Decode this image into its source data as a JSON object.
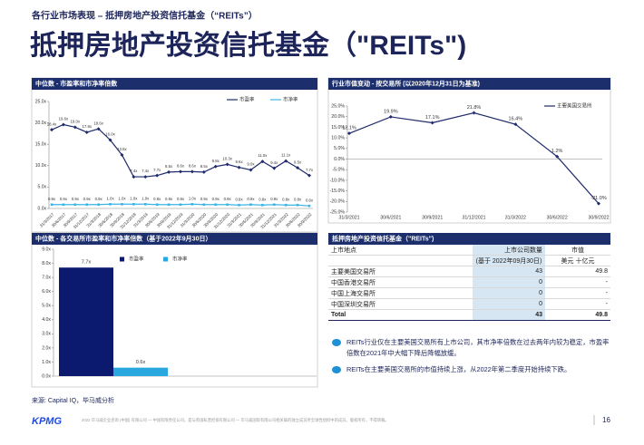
{
  "header": {
    "breadcrumb": "各行业市场表现 – 抵押房地产投资信托基金（“REITs”）",
    "title": "抵押房地产投资信托基金（\"REITs\")"
  },
  "chart_data": [
    {
      "type": "line",
      "title": "中位数 - 市盈率和市净率倍数",
      "categories": [
        "31/3/2017",
        "30/6/2017",
        "30/9/2017",
        "31/12/2017",
        "31/3/2018",
        "30/6/2018",
        "30/9/2018",
        "31/12/2018",
        "31/3/2019",
        "30/6/2019",
        "30/9/2019",
        "31/12/2019",
        "31/3/2020",
        "30/6/2020",
        "30/9/2020",
        "31/12/2020",
        "31/3/2021",
        "30/6/2021",
        "30/9/2021",
        "31/12/2021",
        "31/3/2022",
        "30/6/2022",
        "30/9/2022"
      ],
      "series": [
        {
          "name": "市盈率",
          "color": "#1f2a6b",
          "values": [
            18.4,
            19.6,
            19.0,
            17.8,
            18.6,
            16.0,
            12.5,
            7.4,
            7.4,
            7.7,
            8.5,
            8.6,
            8.6,
            8.5,
            9.8,
            10.3,
            9.6,
            9.0,
            11.0,
            9.4,
            11.1,
            9.5,
            7.7
          ],
          "value_labels": [
            "18.4x",
            "19.6x",
            "19.0x",
            "17.8x",
            "18.6x",
            "16.0x",
            "12.5x",
            "7.4x",
            "7.4x",
            "7.7x",
            "8.5x",
            "8.6x",
            "8.6x",
            "8.5x",
            "9.8x",
            "10.3x",
            "9.6x",
            "9.0x",
            "11.0x",
            "9.4x",
            "11.1x",
            "9.5x",
            "7.7x"
          ]
        },
        {
          "name": "市净率",
          "color": "#3cb4e6",
          "values": [
            0.9,
            0.9,
            0.9,
            0.9,
            0.9,
            1.0,
            1.0,
            1.0,
            1.0,
            0.9,
            0.9,
            0.9,
            1.0,
            0.9,
            0.9,
            0.9,
            0.8,
            0.9,
            0.8,
            0.9,
            0.8,
            0.8,
            0.6
          ],
          "value_labels": [
            "0.9x",
            "0.9x",
            "0.9x",
            "0.9x",
            "0.9x",
            "1.0x",
            "1.0x",
            "1.0x",
            "1.0x",
            "0.9x",
            "0.9x",
            "0.9x",
            "1.0x",
            "0.9x",
            "0.9x",
            "0.9x",
            "0.8x",
            "0.9x",
            "0.8x",
            "0.9x",
            "0.8x",
            "0.8x",
            "0.6x"
          ]
        }
      ],
      "ylim": [
        0,
        25
      ],
      "yticks": [
        {
          "value": 0,
          "label": "0.0x"
        },
        {
          "value": 5,
          "label": "5.0x"
        },
        {
          "value": 10,
          "label": "10.0x"
        },
        {
          "value": 15,
          "label": "15.0x"
        },
        {
          "value": 20,
          "label": "20.0x"
        },
        {
          "value": 25,
          "label": "25.0x"
        }
      ],
      "grid": false,
      "legend": "top-right"
    },
    {
      "type": "line",
      "title": "行业市值变动 - 按交易所 (以2020年12月31日为基准)",
      "categories": [
        "31/3/2021",
        "30/6/2021",
        "30/9/2021",
        "31/12/2021",
        "31/3/2022",
        "30/6/2022",
        "30/9/2022"
      ],
      "series": [
        {
          "name": "主要美国交易所",
          "color": "#1f2a6b",
          "values": [
            12.1,
            19.9,
            17.1,
            21.8,
            16.4,
            1.2,
            -21.0
          ],
          "value_labels": [
            "12.1%",
            "19.9%",
            "17.1%",
            "21.8%",
            "16.4%",
            "1.2%",
            "-21.0%"
          ]
        }
      ],
      "ylim": [
        -25,
        25
      ],
      "yticks": [
        {
          "value": -25,
          "label": "-25.0%"
        },
        {
          "value": -20,
          "label": "-20.0%"
        },
        {
          "value": -15,
          "label": "-15.0%"
        },
        {
          "value": -10,
          "label": "-10.0%"
        },
        {
          "value": -5,
          "label": "-5.0%"
        },
        {
          "value": 0,
          "label": "0.0%"
        },
        {
          "value": 5,
          "label": "5.0%"
        },
        {
          "value": 10,
          "label": "10.0%"
        },
        {
          "value": 15,
          "label": "15.0%"
        },
        {
          "value": 20,
          "label": "20.0%"
        },
        {
          "value": 25,
          "label": "25.0%"
        }
      ],
      "grid": false,
      "legend": "top-right"
    },
    {
      "type": "bar",
      "title": "中位数 - 各交易所市盈率和市净率倍数（基于2022年9月30日）",
      "categories": [
        null
      ],
      "series": [
        {
          "name": "市盈率",
          "color": "#0b1a6e",
          "values": [
            7.7
          ],
          "value_labels": [
            "7.7x"
          ]
        },
        {
          "name": "市净率",
          "color": "#29a8e0",
          "values": [
            0.6
          ],
          "value_labels": [
            "0.6x"
          ]
        }
      ],
      "ylim": [
        0,
        9
      ],
      "yticks": [
        {
          "value": 0,
          "label": "0.0x"
        },
        {
          "value": 1,
          "label": "1.0x"
        },
        {
          "value": 2,
          "label": "2.0x"
        },
        {
          "value": 3,
          "label": "3.0x"
        },
        {
          "value": 4,
          "label": "4.0x"
        },
        {
          "value": 5,
          "label": "5.0x"
        },
        {
          "value": 6,
          "label": "6.0x"
        },
        {
          "value": 7,
          "label": "7.0x"
        },
        {
          "value": 8,
          "label": "8.0x"
        },
        {
          "value": 9,
          "label": "9.0x"
        }
      ],
      "grid": false,
      "legend": "top-center"
    }
  ],
  "table": {
    "title": "抵押房地产投资信托基金（\"REITs\")",
    "header": [
      "上市地点",
      "上市公司数量",
      "市值"
    ],
    "subheader": [
      "(基于 2022年09月30日)",
      "美元 十亿元"
    ],
    "rows": [
      [
        "主要美国交易所",
        43,
        49.8
      ],
      [
        "中国香港交易所",
        0,
        "-"
      ],
      [
        "中国上海交易所",
        0,
        "-"
      ],
      [
        "中国深圳交易所",
        0,
        "-"
      ],
      [
        "Total",
        43,
        49.8
      ]
    ]
  },
  "bullets": [
    "REITs行业仅在主要美国交易所有上市公司，其市净率倍数在过去两年内较为稳定，市盈率倍数在2021年中大幅下降后降幅放缓。",
    "REITs在主要美国交易所的市值持续上涨，从2022年第二季度开始持续下跌。"
  ],
  "source": "来源: Capital IQ，毕马威分析",
  "logo": "KPMG",
  "footer": "2022 毕马威企业咨询 (中国) 有限公司 — 中国有限责任公司，是与英国私营担保有限公司 — 毕马威国际有限公司相关联的独立成员所全球性组织中的成员。版权所有，不得转载。",
  "page": 16
}
